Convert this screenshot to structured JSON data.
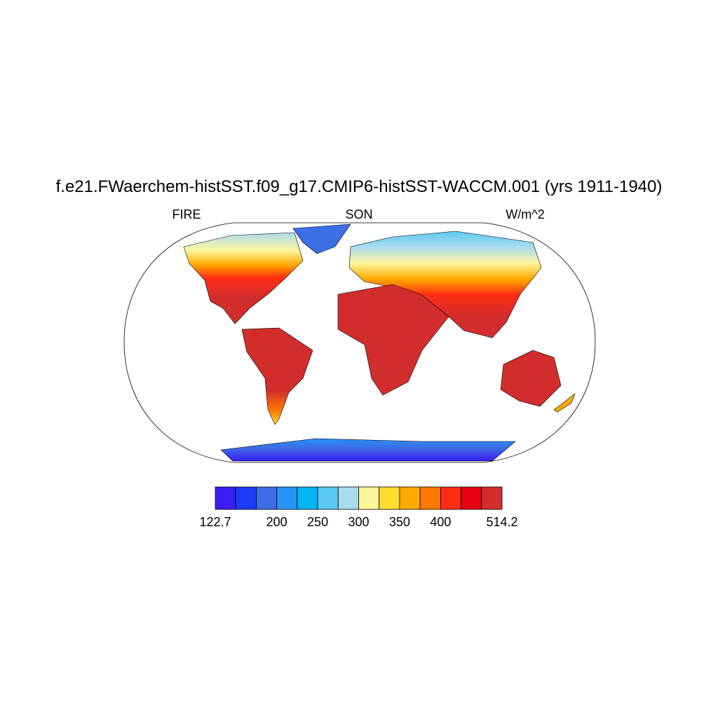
{
  "header": {
    "title": "f.e21.FWaerchem-histSST.f09_g17.CMIP6-histSST-WACCM.001 (yrs 1911-1940)",
    "left": "FIRE",
    "center": "SON",
    "right": "W/m^2"
  },
  "colorbar": {
    "colors": [
      "#3a1ef2",
      "#1e3cf5",
      "#3c6ee6",
      "#2891f5",
      "#00b4f5",
      "#5ac8f0",
      "#aadcf0",
      "#fff59b",
      "#ffdc32",
      "#ffaa00",
      "#ff7800",
      "#ff2d14",
      "#e6000f",
      "#d22d2d"
    ],
    "levels": [
      122.7,
      150,
      175,
      200,
      225,
      250,
      275,
      300,
      325,
      350,
      375,
      400,
      425,
      450,
      514.2
    ],
    "ticks": [
      122.7,
      200,
      250,
      300,
      350,
      400,
      514.2
    ]
  }
}
